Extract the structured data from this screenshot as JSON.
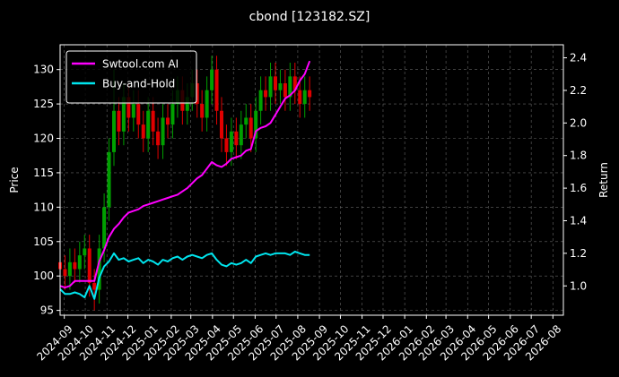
{
  "chart_data": {
    "type": "candlestick",
    "title": "cbond [123182.SZ]",
    "ylabel": "Price",
    "y2label": "Return",
    "x": [
      "2024-08-26",
      "2024-09-02",
      "2024-09-09",
      "2024-09-16",
      "2024-09-23",
      "2024-09-30",
      "2024-10-07",
      "2024-10-14",
      "2024-10-21",
      "2024-10-28",
      "2024-11-04",
      "2024-11-11",
      "2024-11-18",
      "2024-11-25",
      "2024-12-02",
      "2024-12-09",
      "2024-12-16",
      "2024-12-23",
      "2024-12-30",
      "2025-01-06",
      "2025-01-13",
      "2025-01-20",
      "2025-01-27",
      "2025-02-03",
      "2025-02-10",
      "2025-02-17",
      "2025-02-24",
      "2025-03-03",
      "2025-03-10",
      "2025-03-17",
      "2025-03-24",
      "2025-03-31",
      "2025-04-07",
      "2025-04-14",
      "2025-04-21",
      "2025-04-28",
      "2025-05-05",
      "2025-05-12",
      "2025-05-19",
      "2025-05-26",
      "2025-06-02",
      "2025-06-09",
      "2025-06-16",
      "2025-06-23",
      "2025-06-30",
      "2025-07-07",
      "2025-07-14",
      "2025-07-21",
      "2025-07-28",
      "2025-08-04",
      "2025-08-11",
      "2025-08-18"
    ],
    "open": [
      102,
      101,
      100,
      102,
      101,
      103,
      104,
      99,
      98,
      104,
      110,
      118,
      124,
      121,
      126,
      123,
      125,
      122,
      120,
      124,
      121,
      119,
      123,
      122,
      125,
      127,
      124,
      126,
      128,
      125,
      123,
      127,
      130,
      124,
      120,
      118,
      121,
      119,
      122,
      123,
      120,
      124,
      127,
      126,
      129,
      127,
      128,
      126,
      129,
      127,
      125,
      127
    ],
    "high": [
      104,
      103,
      104,
      104,
      105,
      106,
      106,
      101,
      106,
      112,
      120,
      130,
      126,
      128,
      128,
      127,
      127,
      124,
      126,
      126,
      123,
      125,
      125,
      127,
      129,
      129,
      128,
      130,
      130,
      127,
      129,
      132,
      132,
      126,
      122,
      123,
      123,
      124,
      125,
      125,
      126,
      129,
      129,
      131,
      131,
      130,
      130,
      131,
      131,
      129,
      129,
      129
    ],
    "low": [
      98,
      98,
      98,
      99,
      99,
      101,
      97,
      95,
      96,
      102,
      108,
      116,
      119,
      119,
      121,
      121,
      120,
      118,
      118,
      119,
      117,
      117,
      120,
      120,
      123,
      122,
      122,
      124,
      123,
      121,
      121,
      125,
      122,
      118,
      116,
      116,
      117,
      117,
      120,
      118,
      118,
      122,
      124,
      124,
      125,
      125,
      124,
      124,
      125,
      123,
      123,
      124
    ],
    "close": [
      101,
      100,
      102,
      101,
      103,
      104,
      99,
      98,
      104,
      110,
      118,
      124,
      121,
      126,
      123,
      125,
      122,
      120,
      124,
      121,
      119,
      123,
      122,
      125,
      127,
      124,
      126,
      128,
      125,
      123,
      127,
      130,
      124,
      120,
      118,
      121,
      119,
      122,
      123,
      120,
      124,
      127,
      126,
      129,
      127,
      128,
      126,
      129,
      127,
      125,
      127,
      126
    ],
    "up_color": "#00a000",
    "down_color": "#e00000",
    "series": [
      {
        "name": "Swtool.com AI",
        "color": "#ff00ff",
        "axis": "y2",
        "values": [
          1.0,
          0.99,
          1.0,
          1.03,
          1.03,
          1.03,
          1.03,
          1.03,
          1.15,
          1.22,
          1.3,
          1.35,
          1.38,
          1.42,
          1.45,
          1.46,
          1.47,
          1.49,
          1.5,
          1.51,
          1.52,
          1.53,
          1.54,
          1.55,
          1.56,
          1.58,
          1.6,
          1.63,
          1.66,
          1.68,
          1.72,
          1.76,
          1.74,
          1.73,
          1.75,
          1.78,
          1.79,
          1.8,
          1.83,
          1.84,
          1.95,
          1.97,
          1.98,
          2.0,
          2.05,
          2.1,
          2.15,
          2.17,
          2.2,
          2.26,
          2.3,
          2.38
        ]
      },
      {
        "name": "Buy-and-Hold",
        "color": "#00e5ee",
        "axis": "y2",
        "values": [
          0.98,
          0.95,
          0.95,
          0.96,
          0.95,
          0.93,
          1.0,
          0.92,
          1.05,
          1.12,
          1.15,
          1.2,
          1.16,
          1.17,
          1.15,
          1.16,
          1.17,
          1.14,
          1.16,
          1.15,
          1.13,
          1.16,
          1.15,
          1.17,
          1.18,
          1.16,
          1.18,
          1.19,
          1.18,
          1.17,
          1.19,
          1.2,
          1.16,
          1.13,
          1.12,
          1.14,
          1.13,
          1.14,
          1.16,
          1.14,
          1.18,
          1.19,
          1.2,
          1.19,
          1.2,
          1.2,
          1.2,
          1.19,
          1.21,
          1.2,
          1.19,
          1.19
        ]
      }
    ],
    "xlim": [
      "2024-08-26",
      "2026-08-16"
    ],
    "xticks": [
      "2024-09",
      "2024-10",
      "2024-11",
      "2024-12",
      "2025-01",
      "2025-02",
      "2025-03",
      "2025-04",
      "2025-05",
      "2025-06",
      "2025-07",
      "2025-08",
      "2025-09",
      "2025-10",
      "2025-11",
      "2025-12",
      "2026-01",
      "2026-02",
      "2026-03",
      "2026-04",
      "2026-05",
      "2026-06",
      "2026-07",
      "2026-08"
    ],
    "ylim": [
      94.3,
      133.6
    ],
    "yticks": [
      95,
      100,
      105,
      110,
      115,
      120,
      125,
      130
    ],
    "y2lim": [
      0.82,
      2.48
    ],
    "y2ticks": [
      {
        "value": 1,
        "label": "1.0"
      },
      1.2,
      1.4,
      1.6,
      1.8,
      {
        "value": 2,
        "label": "2.0"
      },
      2.2,
      2.4
    ],
    "grid": true,
    "legend": "upper left"
  }
}
